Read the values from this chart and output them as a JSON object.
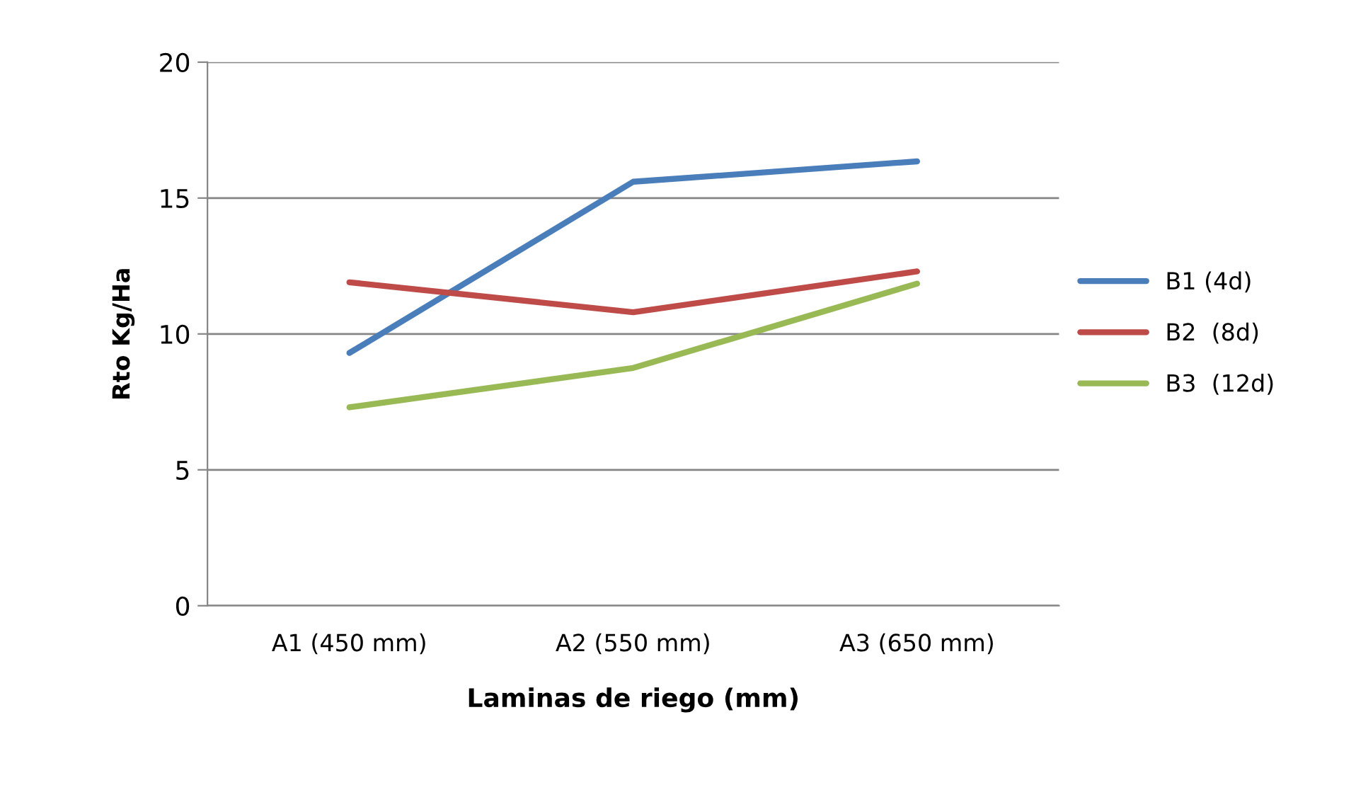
{
  "chart_data": {
    "type": "line",
    "xlabel": "Laminas de riego (mm)",
    "ylabel": "Rto Kg/Ha",
    "categories": [
      "A1 (450 mm)",
      "A2 (550 mm)",
      "A3 (650 mm)"
    ],
    "series": [
      {
        "name": "B1 (4d)",
        "color": "#4a7ebb",
        "values": [
          9.3,
          15.6,
          16.35
        ]
      },
      {
        "name": "B2  (8d)",
        "color": "#be4b48",
        "values": [
          11.9,
          10.8,
          12.3
        ]
      },
      {
        "name": "B3  (12d)",
        "color": "#98b954",
        "values": [
          7.3,
          8.75,
          11.85
        ]
      }
    ],
    "ylim": [
      0,
      20
    ],
    "yticks": [
      0,
      5,
      10,
      15,
      20
    ],
    "grid": "y",
    "legend": "right",
    "marker": "none",
    "line_style": "solid"
  }
}
